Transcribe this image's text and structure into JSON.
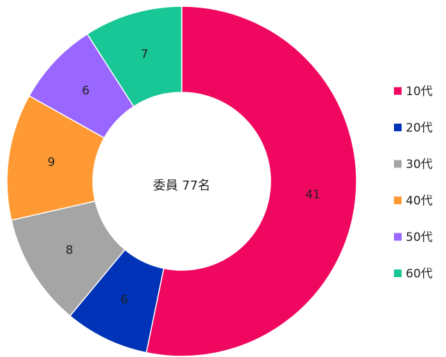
{
  "chart_data": {
    "type": "donut",
    "title": "委員 77名",
    "categories": [
      "10代",
      "20代",
      "30代",
      "40代",
      "50代",
      "60代"
    ],
    "values": [
      41,
      6,
      8,
      9,
      6,
      7
    ],
    "colors": [
      "#f0075f",
      "#0033b8",
      "#a5a5a5",
      "#ff9933",
      "#9966ff",
      "#18c795"
    ],
    "legend": "right"
  }
}
